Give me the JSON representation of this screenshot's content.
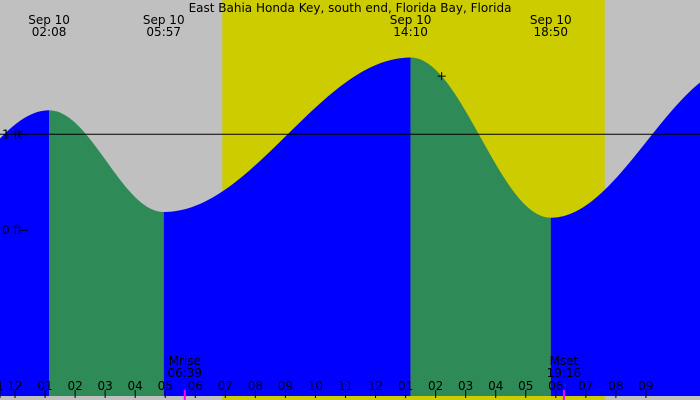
{
  "chart_data": {
    "type": "area",
    "title": "East Bahia Honda Key, south end, Florida Bay, Florida",
    "x_unit": "hour",
    "y_unit": "ft",
    "xlim": [
      0.5,
      23.8
    ],
    "ylim": [
      -1.77,
      2.4
    ],
    "tick_labels": [
      "1",
      "12",
      "01",
      "02",
      "03",
      "04",
      "05",
      "06",
      "07",
      "08",
      "09",
      "10",
      "11",
      "12",
      "01",
      "02",
      "03",
      "04",
      "05",
      "06",
      "07",
      "08",
      "09"
    ],
    "tick_hours": [
      0.5,
      1,
      2,
      3,
      4,
      5,
      6,
      7,
      8,
      9,
      10,
      11,
      12,
      13,
      14,
      15,
      16,
      17,
      18,
      19,
      20,
      21,
      22
    ],
    "y_ticks": [
      {
        "value": 1,
        "label": "1 ft"
      },
      {
        "value": 0,
        "label": "0 ft"
      }
    ],
    "reference_line_ft": 1,
    "daylight_window": {
      "start": 7.9,
      "end": 20.63
    },
    "extremes": [
      {
        "kind": "high",
        "date": "Sep 10",
        "time": "02:08",
        "hour": 2.133,
        "height": 1.25
      },
      {
        "kind": "low",
        "date": "Sep 10",
        "time": "05:57",
        "hour": 5.95,
        "height": 0.19
      },
      {
        "kind": "high",
        "date": "Sep 10",
        "time": "14:10",
        "hour": 14.167,
        "height": 1.8
      },
      {
        "kind": "low",
        "date": "Sep 10",
        "time": "18:50",
        "hour": 18.833,
        "height": 0.13
      }
    ],
    "boundary_levels": {
      "start_hour": 0,
      "start_height": 0.84,
      "end_hour": 23.8,
      "end_height": 0.55
    },
    "moon_events": [
      {
        "label": "Mrise",
        "time": "06:39",
        "hour": 6.65
      },
      {
        "label": "Mset",
        "time": "19:16",
        "hour": 19.27
      }
    ],
    "current_time_hour": 15.2,
    "colors": {
      "background": "#c0c0c0",
      "daylight": "#cccc00",
      "rising": "#0000ff",
      "falling": "#2e8b57",
      "moon_tick": "#ff00ff"
    }
  }
}
